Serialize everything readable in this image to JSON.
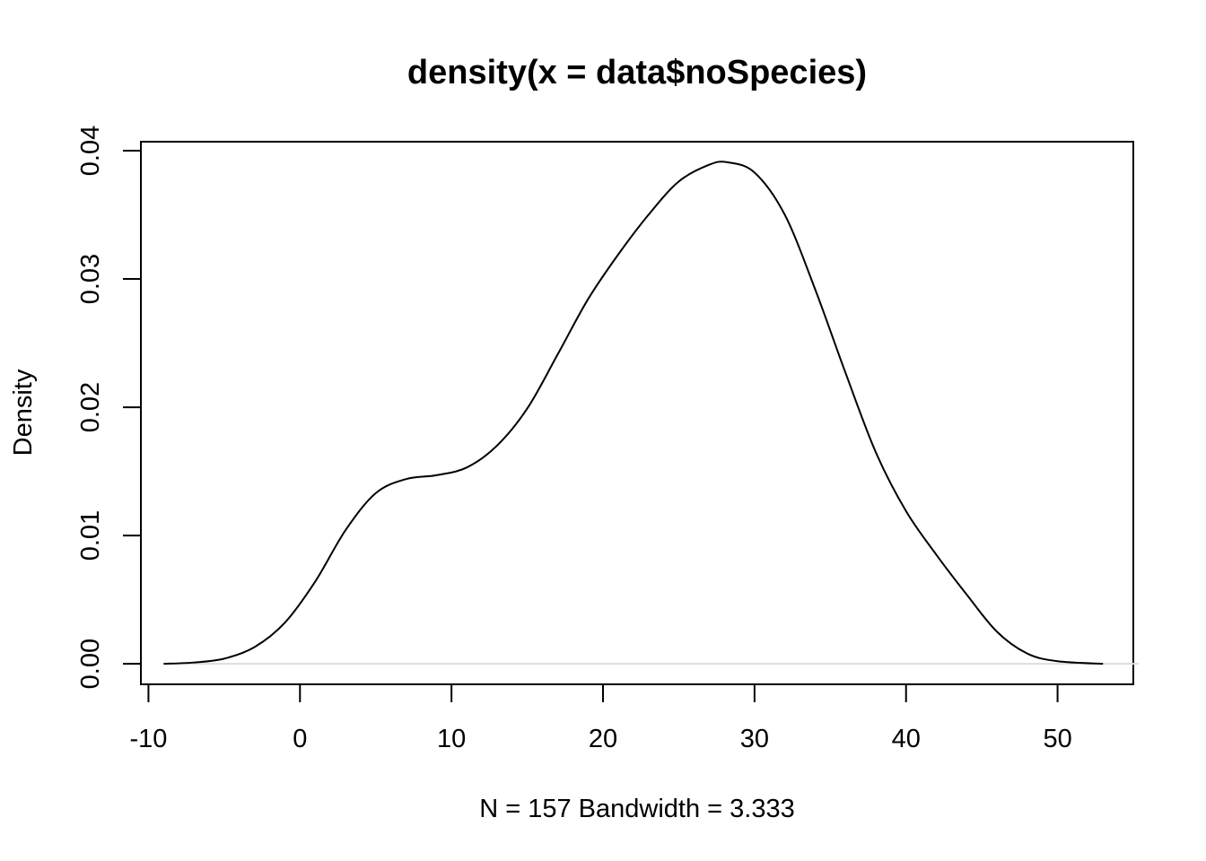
{
  "chart_data": {
    "type": "line",
    "title": "density(x = data$noSpecies)",
    "xlabel": "N = 157   Bandwidth = 3.333",
    "ylabel": "Density",
    "xlim": [
      -10.5,
      55
    ],
    "ylim": [
      -0.0016,
      0.0407
    ],
    "x_ticks": [
      -10,
      0,
      10,
      20,
      30,
      40,
      50
    ],
    "x_tick_labels": [
      "-10",
      "0",
      "10",
      "20",
      "30",
      "40",
      "50"
    ],
    "y_ticks": [
      0.0,
      0.01,
      0.02,
      0.03,
      0.04
    ],
    "y_tick_labels": [
      "0.00",
      "0.01",
      "0.02",
      "0.03",
      "0.04"
    ],
    "grid": false,
    "zero_line": true,
    "series": [
      {
        "color": "#000000",
        "x": [
          -9,
          -7,
          -5,
          -3,
          -1,
          1,
          3,
          5,
          7,
          9,
          11,
          13,
          15,
          17,
          19,
          21,
          23,
          25,
          27,
          28.2,
          30,
          32,
          34,
          36,
          38,
          40,
          42,
          44,
          46,
          48,
          50,
          53
        ],
        "y": [
          0.0,
          0.0001,
          0.0004,
          0.0013,
          0.0032,
          0.0064,
          0.0104,
          0.0133,
          0.0144,
          0.0147,
          0.0153,
          0.017,
          0.0199,
          0.0241,
          0.0284,
          0.0319,
          0.035,
          0.0376,
          0.0389,
          0.0391,
          0.0383,
          0.035,
          0.0292,
          0.0227,
          0.0165,
          0.0119,
          0.0085,
          0.0054,
          0.0025,
          0.0008,
          0.0002,
          0.0
        ]
      }
    ]
  }
}
